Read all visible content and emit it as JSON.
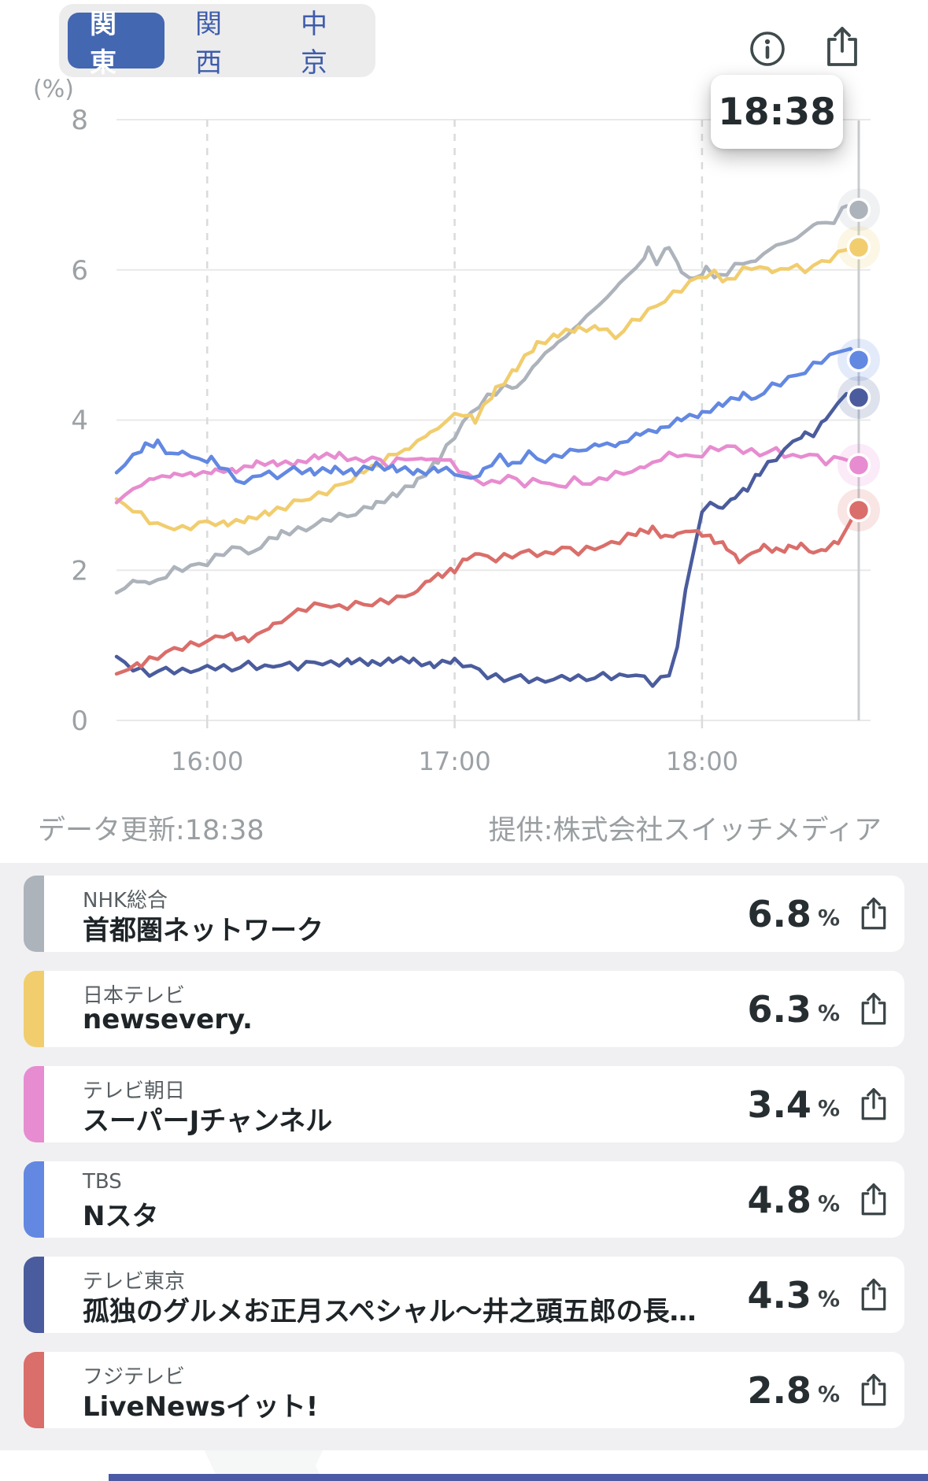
{
  "tabs": {
    "items": [
      {
        "label": "関東",
        "selected": true
      },
      {
        "label": "関西",
        "selected": false
      },
      {
        "label": "中京",
        "selected": false
      }
    ]
  },
  "header": {
    "info_icon": "info-circle",
    "share_icon": "share-box-arrow-up",
    "time_tooltip": "18:38"
  },
  "chart_data": {
    "type": "line",
    "unit_label": "(%)",
    "ylim": [
      0,
      8
    ],
    "y_ticks": [
      "0",
      "2",
      "4",
      "6",
      "8"
    ],
    "x_start_time": "15:38",
    "x_end_time": "18:38",
    "x_ticks": [
      {
        "label": "16:00",
        "min": 22
      },
      {
        "label": "17:00",
        "min": 82
      },
      {
        "label": "18:00",
        "min": 142
      }
    ],
    "cursor": {
      "label": "18:38",
      "min": 180
    },
    "grid": {
      "horizontal": "solid",
      "vertical": "dashed"
    },
    "series": [
      {
        "name": "NHK総合",
        "color": "#ADB3BB",
        "end_value": 6.8,
        "points": [
          [
            0,
            1.7
          ],
          [
            5,
            1.85
          ],
          [
            8,
            1.8
          ],
          [
            14,
            2.0
          ],
          [
            22,
            2.1
          ],
          [
            28,
            2.3
          ],
          [
            33,
            2.25
          ],
          [
            40,
            2.5
          ],
          [
            46,
            2.55
          ],
          [
            52,
            2.7
          ],
          [
            58,
            2.75
          ],
          [
            63,
            2.9
          ],
          [
            68,
            3.0
          ],
          [
            73,
            3.2
          ],
          [
            78,
            3.45
          ],
          [
            82,
            3.8
          ],
          [
            86,
            4.1
          ],
          [
            90,
            4.3
          ],
          [
            94,
            4.45
          ],
          [
            97,
            4.4
          ],
          [
            102,
            4.8
          ],
          [
            107,
            5.0
          ],
          [
            112,
            5.3
          ],
          [
            117,
            5.5
          ],
          [
            122,
            5.85
          ],
          [
            126,
            6.0
          ],
          [
            129,
            6.3
          ],
          [
            131,
            6.1
          ],
          [
            134,
            6.3
          ],
          [
            137,
            5.95
          ],
          [
            140,
            5.85
          ],
          [
            143,
            6.0
          ],
          [
            146,
            5.9
          ],
          [
            150,
            6.05
          ],
          [
            155,
            6.15
          ],
          [
            160,
            6.3
          ],
          [
            165,
            6.45
          ],
          [
            170,
            6.6
          ],
          [
            174,
            6.65
          ],
          [
            177,
            6.85
          ],
          [
            180,
            6.8
          ]
        ]
      },
      {
        "name": "日本テレビ",
        "color": "#F1CD6E",
        "end_value": 6.3,
        "points": [
          [
            0,
            2.95
          ],
          [
            4,
            2.8
          ],
          [
            10,
            2.6
          ],
          [
            16,
            2.55
          ],
          [
            22,
            2.65
          ],
          [
            27,
            2.6
          ],
          [
            32,
            2.7
          ],
          [
            37,
            2.75
          ],
          [
            43,
            2.9
          ],
          [
            49,
            3.0
          ],
          [
            55,
            3.15
          ],
          [
            60,
            3.3
          ],
          [
            66,
            3.5
          ],
          [
            71,
            3.65
          ],
          [
            76,
            3.8
          ],
          [
            80,
            4.0
          ],
          [
            84,
            4.1
          ],
          [
            87,
            4.0
          ],
          [
            92,
            4.4
          ],
          [
            97,
            4.7
          ],
          [
            102,
            5.0
          ],
          [
            107,
            5.15
          ],
          [
            112,
            5.2
          ],
          [
            117,
            5.25
          ],
          [
            121,
            5.1
          ],
          [
            125,
            5.3
          ],
          [
            129,
            5.45
          ],
          [
            133,
            5.6
          ],
          [
            137,
            5.75
          ],
          [
            141,
            5.9
          ],
          [
            145,
            5.95
          ],
          [
            148,
            5.85
          ],
          [
            152,
            6.0
          ],
          [
            156,
            6.05
          ],
          [
            159,
            5.95
          ],
          [
            163,
            6.05
          ],
          [
            167,
            6.0
          ],
          [
            171,
            6.1
          ],
          [
            175,
            6.2
          ],
          [
            178,
            6.3
          ],
          [
            180,
            6.3
          ]
        ]
      },
      {
        "name": "テレビ朝日",
        "color": "#E78CD0",
        "end_value": 3.4,
        "points": [
          [
            0,
            2.9
          ],
          [
            4,
            3.1
          ],
          [
            9,
            3.2
          ],
          [
            14,
            3.3
          ],
          [
            19,
            3.25
          ],
          [
            24,
            3.35
          ],
          [
            29,
            3.3
          ],
          [
            34,
            3.45
          ],
          [
            39,
            3.4
          ],
          [
            44,
            3.45
          ],
          [
            49,
            3.5
          ],
          [
            54,
            3.55
          ],
          [
            58,
            3.45
          ],
          [
            62,
            3.5
          ],
          [
            66,
            3.4
          ],
          [
            70,
            3.5
          ],
          [
            75,
            3.45
          ],
          [
            79,
            3.5
          ],
          [
            83,
            3.35
          ],
          [
            87,
            3.2
          ],
          [
            91,
            3.15
          ],
          [
            95,
            3.25
          ],
          [
            99,
            3.15
          ],
          [
            103,
            3.2
          ],
          [
            107,
            3.1
          ],
          [
            111,
            3.2
          ],
          [
            115,
            3.15
          ],
          [
            119,
            3.25
          ],
          [
            123,
            3.3
          ],
          [
            128,
            3.35
          ],
          [
            132,
            3.5
          ],
          [
            136,
            3.55
          ],
          [
            140,
            3.5
          ],
          [
            144,
            3.6
          ],
          [
            148,
            3.65
          ],
          [
            152,
            3.6
          ],
          [
            156,
            3.55
          ],
          [
            160,
            3.6
          ],
          [
            164,
            3.5
          ],
          [
            168,
            3.55
          ],
          [
            172,
            3.45
          ],
          [
            176,
            3.5
          ],
          [
            180,
            3.4
          ]
        ]
      },
      {
        "name": "TBS",
        "color": "#6288E2",
        "end_value": 4.8,
        "points": [
          [
            0,
            3.3
          ],
          [
            4,
            3.5
          ],
          [
            7,
            3.65
          ],
          [
            10,
            3.7
          ],
          [
            13,
            3.55
          ],
          [
            16,
            3.6
          ],
          [
            20,
            3.45
          ],
          [
            23,
            3.5
          ],
          [
            27,
            3.3
          ],
          [
            31,
            3.15
          ],
          [
            35,
            3.3
          ],
          [
            39,
            3.25
          ],
          [
            43,
            3.35
          ],
          [
            48,
            3.3
          ],
          [
            53,
            3.35
          ],
          [
            58,
            3.3
          ],
          [
            63,
            3.4
          ],
          [
            68,
            3.35
          ],
          [
            73,
            3.3
          ],
          [
            78,
            3.35
          ],
          [
            82,
            3.3
          ],
          [
            86,
            3.2
          ],
          [
            89,
            3.35
          ],
          [
            93,
            3.5
          ],
          [
            96,
            3.4
          ],
          [
            100,
            3.55
          ],
          [
            104,
            3.45
          ],
          [
            108,
            3.55
          ],
          [
            112,
            3.6
          ],
          [
            117,
            3.65
          ],
          [
            122,
            3.7
          ],
          [
            127,
            3.8
          ],
          [
            132,
            3.9
          ],
          [
            137,
            4.0
          ],
          [
            142,
            4.1
          ],
          [
            147,
            4.2
          ],
          [
            152,
            4.35
          ],
          [
            155,
            4.3
          ],
          [
            159,
            4.45
          ],
          [
            163,
            4.55
          ],
          [
            167,
            4.65
          ],
          [
            171,
            4.8
          ],
          [
            175,
            4.9
          ],
          [
            178,
            4.95
          ],
          [
            180,
            4.8
          ]
        ]
      },
      {
        "name": "テレビ東京",
        "color": "#4A5C9D",
        "end_value": 4.3,
        "points": [
          [
            0,
            0.85
          ],
          [
            4,
            0.7
          ],
          [
            8,
            0.62
          ],
          [
            12,
            0.68
          ],
          [
            16,
            0.65
          ],
          [
            20,
            0.68
          ],
          [
            24,
            0.72
          ],
          [
            28,
            0.68
          ],
          [
            32,
            0.75
          ],
          [
            36,
            0.7
          ],
          [
            40,
            0.75
          ],
          [
            44,
            0.72
          ],
          [
            48,
            0.78
          ],
          [
            52,
            0.75
          ],
          [
            57,
            0.8
          ],
          [
            62,
            0.75
          ],
          [
            67,
            0.82
          ],
          [
            72,
            0.78
          ],
          [
            77,
            0.75
          ],
          [
            82,
            0.78
          ],
          [
            86,
            0.72
          ],
          [
            90,
            0.6
          ],
          [
            94,
            0.55
          ],
          [
            98,
            0.58
          ],
          [
            102,
            0.52
          ],
          [
            106,
            0.55
          ],
          [
            110,
            0.58
          ],
          [
            114,
            0.55
          ],
          [
            118,
            0.6
          ],
          [
            122,
            0.58
          ],
          [
            126,
            0.62
          ],
          [
            128,
            0.55
          ],
          [
            130,
            0.5
          ],
          [
            132,
            0.55
          ],
          [
            134,
            0.6
          ],
          [
            136,
            1.0
          ],
          [
            138,
            1.7
          ],
          [
            140,
            2.3
          ],
          [
            142,
            2.75
          ],
          [
            144,
            2.9
          ],
          [
            147,
            2.85
          ],
          [
            150,
            3.0
          ],
          [
            153,
            3.1
          ],
          [
            156,
            3.3
          ],
          [
            160,
            3.5
          ],
          [
            164,
            3.7
          ],
          [
            167,
            3.85
          ],
          [
            169,
            3.8
          ],
          [
            172,
            4.0
          ],
          [
            175,
            4.2
          ],
          [
            177,
            4.35
          ],
          [
            179,
            4.25
          ],
          [
            180,
            4.3
          ]
        ]
      },
      {
        "name": "フジテレビ",
        "color": "#DA6E6A",
        "end_value": 2.8,
        "points": [
          [
            0,
            0.62
          ],
          [
            3,
            0.68
          ],
          [
            6,
            0.75
          ],
          [
            10,
            0.85
          ],
          [
            14,
            0.95
          ],
          [
            18,
            1.0
          ],
          [
            22,
            1.05
          ],
          [
            26,
            1.15
          ],
          [
            29,
            1.1
          ],
          [
            32,
            1.05
          ],
          [
            35,
            1.15
          ],
          [
            38,
            1.25
          ],
          [
            42,
            1.4
          ],
          [
            46,
            1.5
          ],
          [
            50,
            1.55
          ],
          [
            54,
            1.5
          ],
          [
            58,
            1.55
          ],
          [
            62,
            1.55
          ],
          [
            66,
            1.6
          ],
          [
            70,
            1.65
          ],
          [
            73,
            1.75
          ],
          [
            76,
            1.9
          ],
          [
            79,
            1.95
          ],
          [
            82,
            2.0
          ],
          [
            85,
            2.15
          ],
          [
            88,
            2.2
          ],
          [
            92,
            2.15
          ],
          [
            96,
            2.2
          ],
          [
            100,
            2.25
          ],
          [
            104,
            2.2
          ],
          [
            108,
            2.3
          ],
          [
            112,
            2.25
          ],
          [
            116,
            2.3
          ],
          [
            120,
            2.35
          ],
          [
            124,
            2.45
          ],
          [
            127,
            2.5
          ],
          [
            130,
            2.55
          ],
          [
            133,
            2.45
          ],
          [
            136,
            2.5
          ],
          [
            139,
            2.55
          ],
          [
            142,
            2.5
          ],
          [
            145,
            2.4
          ],
          [
            148,
            2.3
          ],
          [
            151,
            2.1
          ],
          [
            154,
            2.2
          ],
          [
            157,
            2.3
          ],
          [
            160,
            2.25
          ],
          [
            163,
            2.3
          ],
          [
            166,
            2.35
          ],
          [
            169,
            2.25
          ],
          [
            172,
            2.3
          ],
          [
            175,
            2.4
          ],
          [
            177,
            2.55
          ],
          [
            179,
            2.75
          ],
          [
            180,
            2.8
          ]
        ]
      }
    ]
  },
  "footer": {
    "updated": "データ更新:18:38",
    "provider": "提供:株式会社スイッチメディア"
  },
  "legend": {
    "items": [
      {
        "channel": "NHK総合",
        "program": "首都圏ネットワーク",
        "value": "6.8",
        "unit": "%",
        "color": "#ADB3BB"
      },
      {
        "channel": "日本テレビ",
        "program": "newsevery.",
        "value": "6.3",
        "unit": "%",
        "color": "#F1CD6E"
      },
      {
        "channel": "テレビ朝日",
        "program": "スーパーJチャンネル",
        "value": "3.4",
        "unit": "%",
        "color": "#E78CD0"
      },
      {
        "channel": "TBS",
        "program": "Nスタ",
        "value": "4.8",
        "unit": "%",
        "color": "#6288E2"
      },
      {
        "channel": "テレビ東京",
        "program": "孤独のグルメお正月スペシャル〜井之頭五郎の長…",
        "value": "4.3",
        "unit": "%",
        "color": "#4A5C9D"
      },
      {
        "channel": "フジテレビ",
        "program": "LiveNewsイット!",
        "value": "2.8",
        "unit": "%",
        "color": "#DA6E6A"
      }
    ]
  }
}
